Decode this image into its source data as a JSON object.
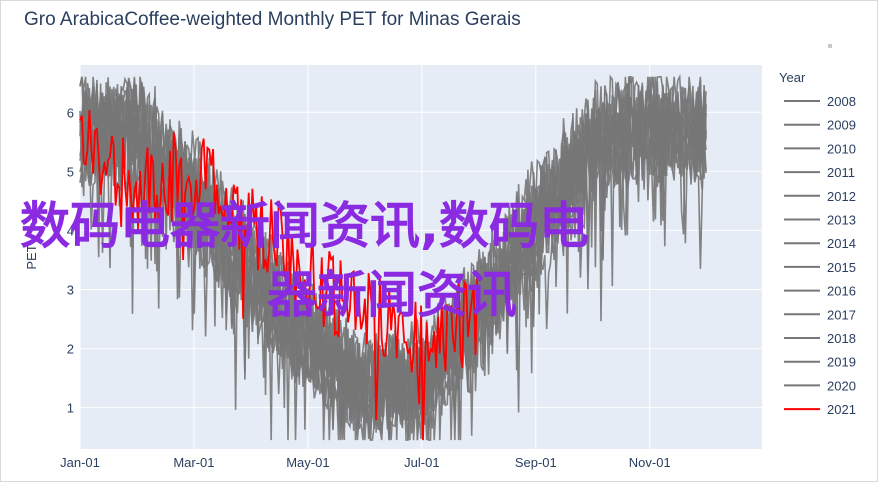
{
  "chart_data": {
    "type": "line",
    "title": "Gro ArabicaCoffee-weighted Monthly PET for Minas Gerais",
    "xlabel": "",
    "ylabel": "PET",
    "x_ticks": [
      "Jan-01",
      "Mar-01",
      "May-01",
      "Jul-01",
      "Sep-01",
      "Nov-01"
    ],
    "y_ticks": [
      1,
      2,
      3,
      4,
      5,
      6
    ],
    "ylim": [
      0.3,
      6.8
    ],
    "grid": true,
    "legend": {
      "title": "Year",
      "placement": "right"
    },
    "colors": {
      "grey": "#777777",
      "highlight": "#ff0000",
      "plot_bg": "#e5ecf6"
    },
    "series": [
      {
        "name": "2008",
        "color": "#777777",
        "profile": [
          5.4,
          6.0,
          4.4,
          3.4,
          2.2,
          1.3,
          1.5,
          2.5,
          3.8,
          5.2,
          5.8,
          5.5
        ]
      },
      {
        "name": "2009",
        "color": "#777777",
        "profile": [
          5.8,
          5.3,
          4.2,
          3.0,
          2.0,
          1.2,
          1.6,
          2.8,
          4.0,
          5.5,
          6.0,
          5.6
        ]
      },
      {
        "name": "2010",
        "color": "#777777",
        "profile": [
          5.9,
          5.6,
          4.8,
          3.3,
          2.4,
          1.5,
          1.7,
          2.6,
          4.2,
          5.4,
          5.7,
          5.8
        ]
      },
      {
        "name": "2011",
        "color": "#777777",
        "profile": [
          5.5,
          5.8,
          4.5,
          3.1,
          2.1,
          1.0,
          1.4,
          2.7,
          4.5,
          5.8,
          6.1,
          5.4
        ]
      },
      {
        "name": "2012",
        "color": "#777777",
        "profile": [
          6.0,
          5.4,
          4.2,
          3.6,
          2.3,
          1.6,
          1.3,
          2.3,
          3.9,
          5.3,
          5.9,
          5.7
        ]
      },
      {
        "name": "2013",
        "color": "#777777",
        "profile": [
          5.6,
          5.7,
          4.6,
          3.2,
          1.9,
          1.4,
          1.5,
          2.9,
          4.1,
          5.6,
          5.6,
          5.9
        ]
      },
      {
        "name": "2014",
        "color": "#777777",
        "profile": [
          5.7,
          6.0,
          5.0,
          3.5,
          2.2,
          1.3,
          1.8,
          2.7,
          4.3,
          5.2,
          5.8,
          5.5
        ]
      },
      {
        "name": "2015",
        "color": "#777777",
        "profile": [
          5.9,
          5.5,
          4.4,
          2.9,
          2.0,
          1.1,
          1.2,
          2.4,
          4.0,
          5.7,
          6.1,
          5.8
        ]
      },
      {
        "name": "2016",
        "color": "#777777",
        "profile": [
          5.4,
          5.6,
          4.7,
          3.4,
          2.5,
          1.5,
          1.6,
          2.8,
          3.7,
          5.0,
          5.5,
          5.6
        ]
      },
      {
        "name": "2017",
        "color": "#777777",
        "profile": [
          5.8,
          5.9,
          4.3,
          3.0,
          2.1,
          1.2,
          1.4,
          2.6,
          4.4,
          5.9,
          5.9,
          5.7
        ]
      },
      {
        "name": "2018",
        "color": "#777777",
        "profile": [
          5.6,
          5.3,
          4.6,
          3.3,
          1.8,
          1.4,
          1.5,
          2.5,
          4.2,
          5.4,
          5.7,
          5.3
        ]
      },
      {
        "name": "2019",
        "color": "#777777",
        "profile": [
          6.0,
          5.7,
          4.9,
          3.6,
          2.3,
          1.3,
          1.7,
          3.0,
          4.5,
          5.6,
          6.0,
          5.9
        ]
      },
      {
        "name": "2020",
        "color": "#777777",
        "profile": [
          5.5,
          5.8,
          4.5,
          3.1,
          2.2,
          1.6,
          1.4,
          2.4,
          4.1,
          5.3,
          5.6,
          5.6
        ]
      },
      {
        "name": "2021",
        "color": "#ff0000",
        "profile": [
          5.4,
          4.6,
          5.0,
          4.2,
          3.3,
          2.6,
          2.2,
          2.5
        ]
      }
    ]
  },
  "watermark": {
    "line1": "数码电器新闻资讯,数码电",
    "line2": "器新闻资讯"
  }
}
